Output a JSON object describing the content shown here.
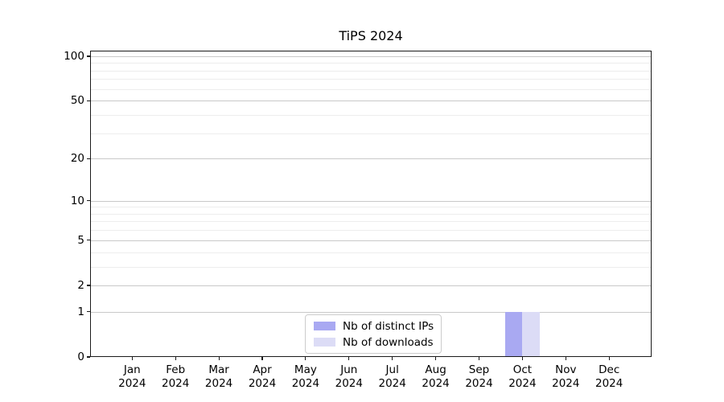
{
  "title": "TiPS 2024",
  "chart_data": {
    "type": "bar",
    "title": "TiPS 2024",
    "categories": [
      "Jan 2024",
      "Feb 2024",
      "Mar 2024",
      "Apr 2024",
      "May 2024",
      "Jun 2024",
      "Jul 2024",
      "Aug 2024",
      "Sep 2024",
      "Oct 2024",
      "Nov 2024",
      "Dec 2024"
    ],
    "series": [
      {
        "name": "Nb of distinct IPs",
        "color": "#a9a9f2",
        "values": [
          0,
          0,
          0,
          0,
          0,
          0,
          0,
          0,
          0,
          1,
          0,
          0
        ]
      },
      {
        "name": "Nb of downloads",
        "color": "#dcdcf6",
        "values": [
          0,
          0,
          0,
          0,
          0,
          0,
          0,
          0,
          0,
          1,
          0,
          0
        ]
      }
    ],
    "xlabel": "",
    "ylabel": "",
    "y_axis": {
      "scale": "log1p",
      "tick_values": [
        100,
        50,
        20,
        10,
        5,
        2,
        1,
        0
      ],
      "minor_gridline_values": [
        90,
        80,
        70,
        60,
        40,
        30,
        9,
        8,
        7,
        6,
        4,
        3
      ],
      "ylim": [
        0,
        109
      ]
    },
    "grid": true,
    "legend_position": "lower center"
  },
  "colors": {
    "grid_major": "#c9c9c9",
    "grid_minor": "#ededed",
    "spine": "#1a1a1a",
    "text": "#000000",
    "legend_border": "#cccccc",
    "background": "#ffffff"
  }
}
